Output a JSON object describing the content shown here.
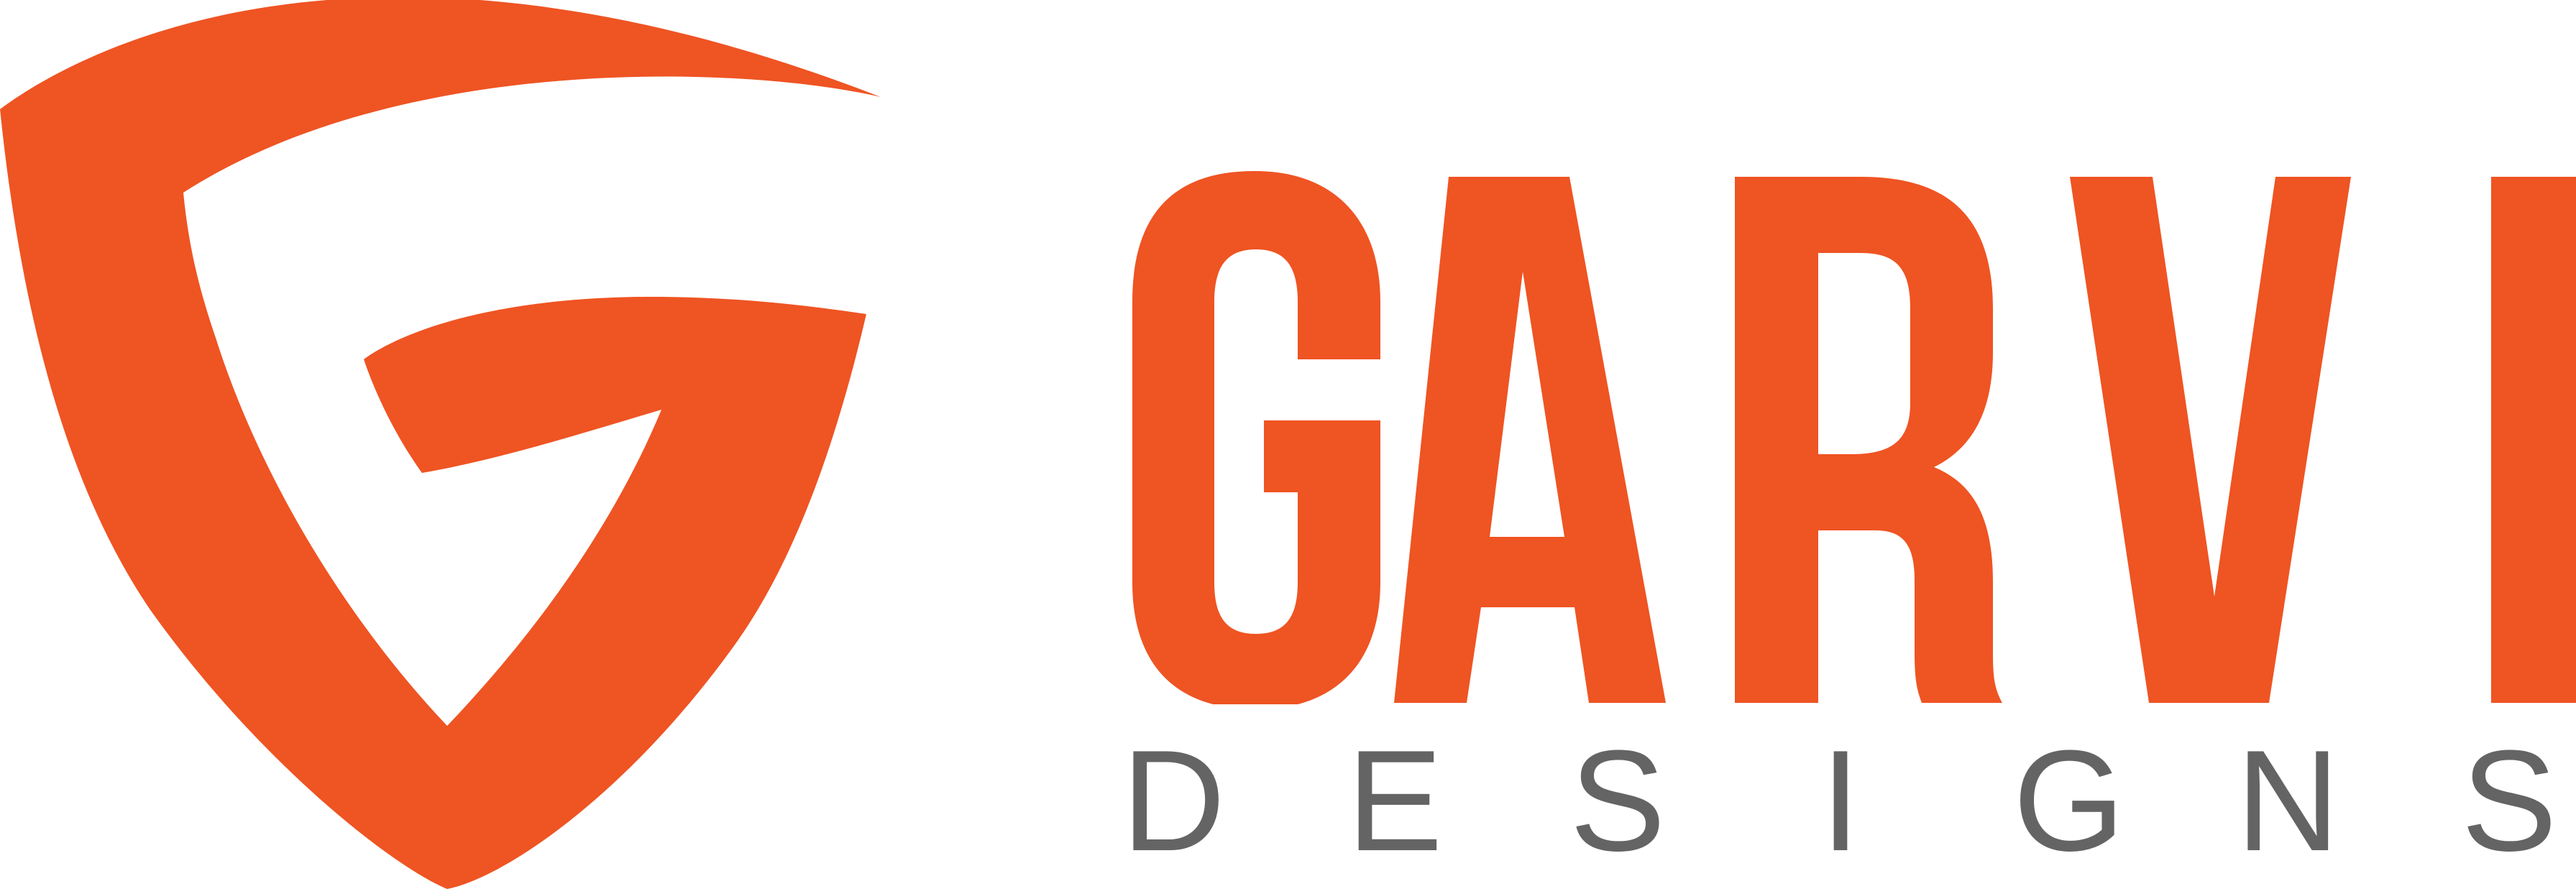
{
  "brand": {
    "name": "GARVI",
    "tagline_letters": [
      "D",
      "E",
      "S",
      "I",
      "G",
      "N",
      "S"
    ],
    "colors": {
      "primary": "#EF5423",
      "tagline": "#646464",
      "background": "#FFFFFF"
    },
    "icon": "g-shield-icon"
  }
}
